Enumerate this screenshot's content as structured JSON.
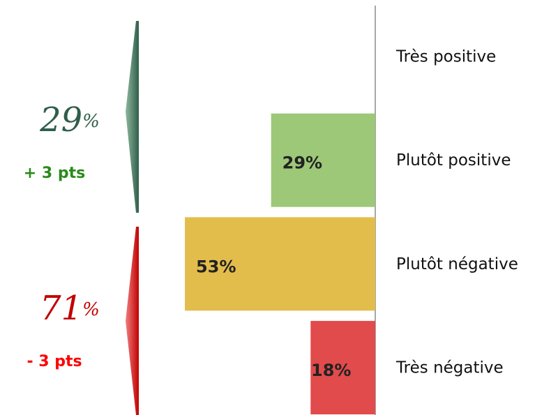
{
  "chart_data": {
    "type": "hbar",
    "categories": [
      "Très positive",
      "Plutôt positive",
      "Plutôt négative",
      "Très négative"
    ],
    "values": [
      0,
      29,
      53,
      18
    ],
    "value_labels": [
      null,
      "29%",
      "53%",
      "18%"
    ],
    "colors": [
      "#9dc878",
      "#9dc878",
      "#e3bd4c",
      "#e14b4b"
    ],
    "xlim": [
      0,
      100
    ],
    "summary": [
      {
        "value": 29,
        "unit": "%",
        "change": "+ 3 pts",
        "color": "#2f5e4a",
        "change_color": "#2a8a1a"
      },
      {
        "value": 71,
        "unit": "%",
        "change": "- 3 pts",
        "color": "#c00000",
        "change_color": "#ff0000"
      }
    ]
  }
}
